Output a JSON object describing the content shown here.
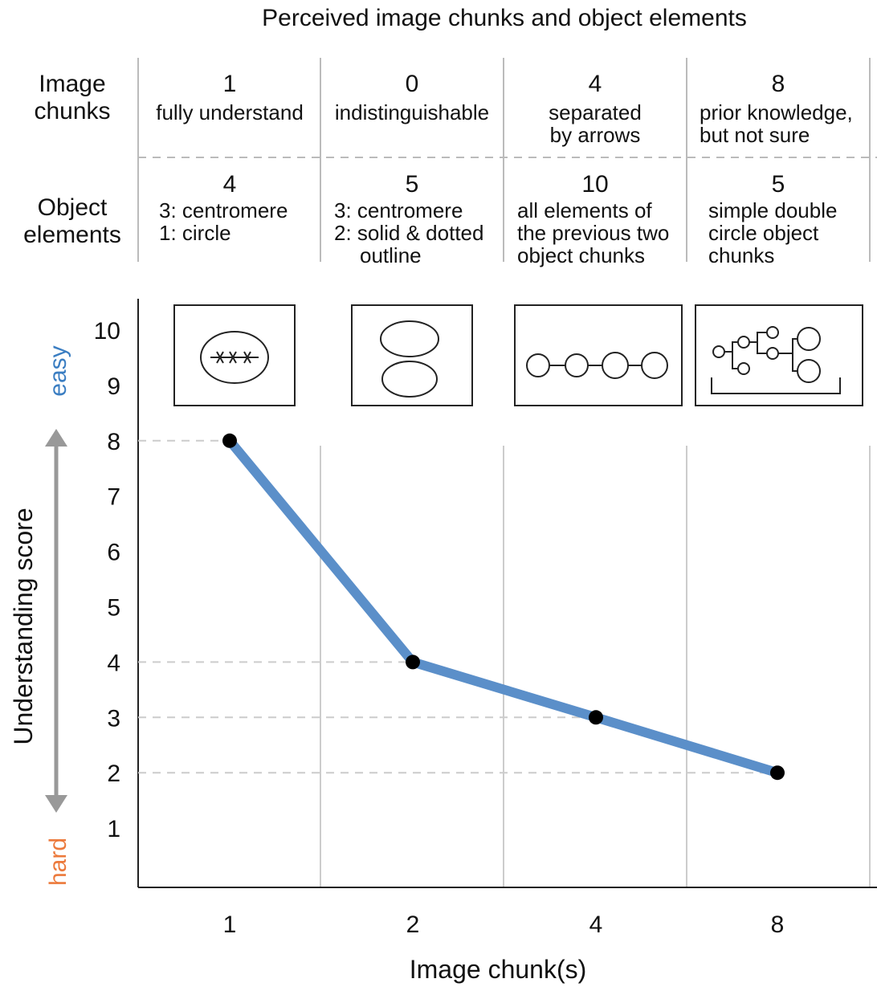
{
  "table": {
    "title": "Perceived image chunks and object elements",
    "row_labels": [
      [
        "Image",
        "chunks"
      ],
      [
        "Object",
        "elements"
      ]
    ],
    "columns": [
      {
        "image_chunks": 1,
        "image_note": [
          "fully understand"
        ],
        "object_elements": 4,
        "object_note": [
          "3: centromere",
          "1: circle"
        ]
      },
      {
        "image_chunks": 0,
        "image_note": [
          "indistinguishable"
        ],
        "object_elements": 5,
        "object_note": [
          "3: centromere",
          "2: solid & dotted",
          "outline"
        ]
      },
      {
        "image_chunks": 4,
        "image_note": [
          "separated",
          "by arrows"
        ],
        "object_elements": 10,
        "object_note": [
          "all elements of",
          "the previous two",
          "object chunks"
        ]
      },
      {
        "image_chunks": 8,
        "image_note": [
          "prior knowledge,",
          "but not sure"
        ],
        "object_elements": 5,
        "object_note": [
          "simple double",
          "circle object",
          "chunks"
        ]
      }
    ]
  },
  "chart_data": {
    "type": "line",
    "x_label": "Image chunk(s)",
    "y_label": "Understanding score",
    "easy_label": "easy",
    "hard_label": "hard",
    "categories": [
      "1",
      "2",
      "4",
      "8"
    ],
    "series": [
      {
        "name": "Understanding score",
        "color": "#5b8fc9",
        "values": [
          8,
          4,
          3,
          2
        ]
      }
    ],
    "ylim": [
      0,
      10.6
    ],
    "yticks": [
      1,
      2,
      3,
      4,
      5,
      6,
      7,
      8,
      9,
      10
    ]
  }
}
